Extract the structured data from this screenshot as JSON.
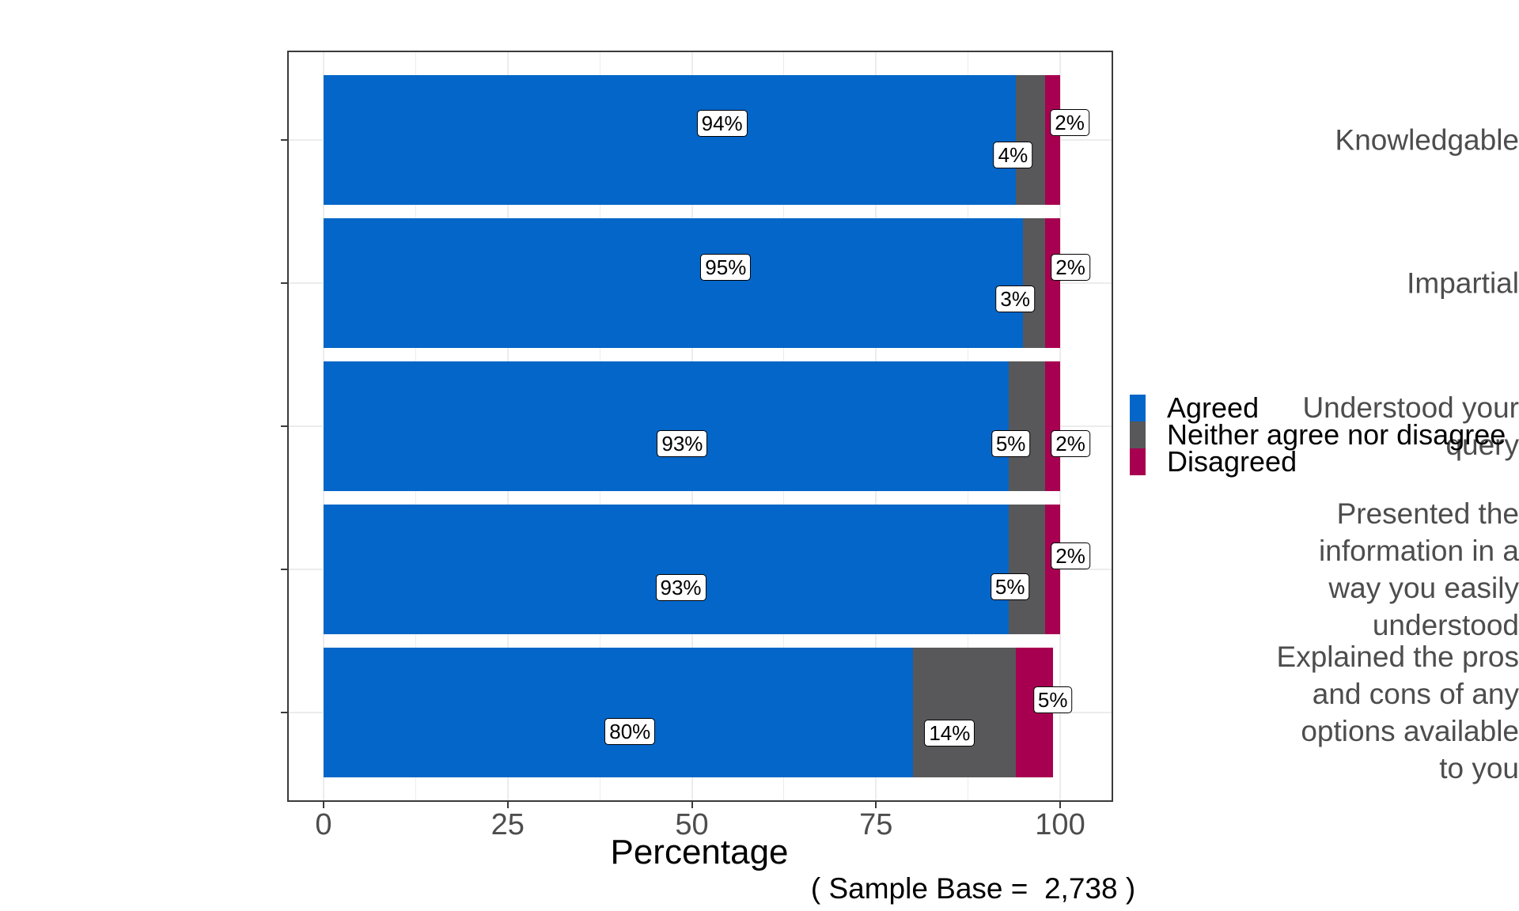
{
  "chart_data": {
    "type": "bar",
    "orientation": "horizontal",
    "stacked": true,
    "title": "",
    "xlabel": "Percentage",
    "note": "( Sample Base =  2,738 )",
    "xlim": [
      0,
      100
    ],
    "x_ticks": [
      0,
      25,
      50,
      75,
      100
    ],
    "x_minor_step": 12.5,
    "grid": true,
    "legend_position": "right",
    "categories": [
      {
        "label": "Knowledgable",
        "lines": [
          "Knowledgable"
        ]
      },
      {
        "label": "Impartial",
        "lines": [
          "Impartial"
        ]
      },
      {
        "label": "Understood your query",
        "lines": [
          "Understood your",
          "query"
        ]
      },
      {
        "label": "Presented the information in a way you easily understood",
        "lines": [
          "Presented the",
          "information in a",
          "way you easily",
          "understood"
        ]
      },
      {
        "label": "Explained the pros and cons of any options available to you",
        "lines": [
          "Explained the pros",
          "and cons of any",
          "options available",
          "to you"
        ]
      }
    ],
    "series": [
      {
        "name": "Agreed",
        "color": "#0366C8",
        "values": [
          94,
          95,
          93,
          93,
          80
        ]
      },
      {
        "name": "Neither agree nor disagree",
        "color": "#58585A",
        "values": [
          4,
          3,
          5,
          5,
          14
        ]
      },
      {
        "name": "Disagreed",
        "color": "#A80051",
        "values": [
          2,
          2,
          2,
          2,
          5
        ]
      }
    ],
    "bar_labels": [
      [
        "94%",
        "4%",
        "2%"
      ],
      [
        "95%",
        "3%",
        "2%"
      ],
      [
        "93%",
        "5%",
        "2%"
      ],
      [
        "93%",
        "5%",
        "2%"
      ],
      [
        "80%",
        "14%",
        "5%"
      ]
    ],
    "label_layout": [
      [
        {
          "x_pct": 54.1,
          "dy": -21
        },
        {
          "x_pct": 93.6,
          "dy": 19
        },
        {
          "x_pct": 101.3,
          "dy": -22
        }
      ],
      [
        {
          "x_pct": 54.6,
          "dy": -20
        },
        {
          "x_pct": 93.9,
          "dy": 20
        },
        {
          "x_pct": 101.4,
          "dy": -20
        }
      ],
      [
        {
          "x_pct": 48.7,
          "dy": 22
        },
        {
          "x_pct": 93.3,
          "dy": 22
        },
        {
          "x_pct": 101.4,
          "dy": 22
        }
      ],
      [
        {
          "x_pct": 48.5,
          "dy": 23
        },
        {
          "x_pct": 93.2,
          "dy": 22
        },
        {
          "x_pct": 101.4,
          "dy": -17
        }
      ],
      [
        {
          "x_pct": 41.6,
          "dy": 24
        },
        {
          "x_pct": 85.0,
          "dy": 26
        },
        {
          "x_pct": 99.0,
          "dy": -16
        }
      ]
    ]
  },
  "colors": {
    "agreed": "#0366C8",
    "neutral": "#58585A",
    "disagreed": "#A80051",
    "grid": "#ECECEC",
    "panel_border": "#3A3A3A",
    "axis_text": "#4D4D4D",
    "label_text": "#000000",
    "background": "#FFFFFF"
  }
}
